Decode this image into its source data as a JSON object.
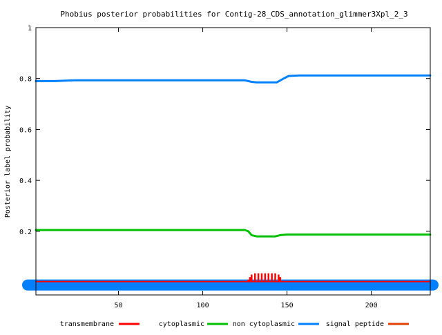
{
  "chart_data": {
    "type": "line",
    "title": "Phobius posterior probabilities for Contig-28_CDS_annotation_glimmer3Xpl_2_3",
    "xlabel": "",
    "ylabel": "Posterior label probability",
    "xlim": [
      1,
      235
    ],
    "ylim": [
      -0.05,
      1
    ],
    "x_ticks": [
      {
        "value": 50,
        "label": "50"
      },
      {
        "value": 100,
        "label": "100"
      },
      {
        "value": 150,
        "label": "150"
      },
      {
        "value": 200,
        "label": "200"
      }
    ],
    "y_ticks": [
      {
        "value": 0.2,
        "label": "0.2"
      },
      {
        "value": 0.4,
        "label": "0.4"
      },
      {
        "value": 0.6,
        "label": "0.6"
      },
      {
        "value": 0.8,
        "label": "0.8"
      },
      {
        "value": 1,
        "label": "1"
      }
    ],
    "grid": false,
    "legend_position": "bottom",
    "series": [
      {
        "name": "transmembrane",
        "color": "#ff0000",
        "style": "impulses",
        "points": [
          [
            127,
            0.01
          ],
          [
            128,
            0.02
          ],
          [
            129,
            0.03
          ],
          [
            131,
            0.035
          ],
          [
            133,
            0.035
          ],
          [
            135,
            0.035
          ],
          [
            137,
            0.035
          ],
          [
            139,
            0.035
          ],
          [
            141,
            0.035
          ],
          [
            143,
            0.035
          ],
          [
            145,
            0.03
          ],
          [
            146,
            0.02
          ]
        ]
      },
      {
        "name": "cytoplasmic",
        "color": "#00c000",
        "style": "line",
        "points": [
          [
            1,
            0.205
          ],
          [
            125,
            0.205
          ],
          [
            127,
            0.2
          ],
          [
            129,
            0.185
          ],
          [
            132,
            0.18
          ],
          [
            143,
            0.18
          ],
          [
            146,
            0.185
          ],
          [
            150,
            0.187
          ],
          [
            235,
            0.187
          ]
        ]
      },
      {
        "name": "non cytoplasmic",
        "color": "#0080ff",
        "style": "line",
        "points": [
          [
            1,
            0.79
          ],
          [
            12,
            0.79
          ],
          [
            24,
            0.793
          ],
          [
            125,
            0.793
          ],
          [
            127,
            0.79
          ],
          [
            129,
            0.787
          ],
          [
            132,
            0.785
          ],
          [
            144,
            0.785
          ],
          [
            148,
            0.8
          ],
          [
            151,
            0.81
          ],
          [
            157,
            0.812
          ],
          [
            235,
            0.812
          ]
        ]
      },
      {
        "name": "signal peptide",
        "color": "#e04000",
        "style": "line",
        "points": [
          [
            1,
            0.005
          ],
          [
            235,
            0.005
          ]
        ]
      }
    ]
  }
}
